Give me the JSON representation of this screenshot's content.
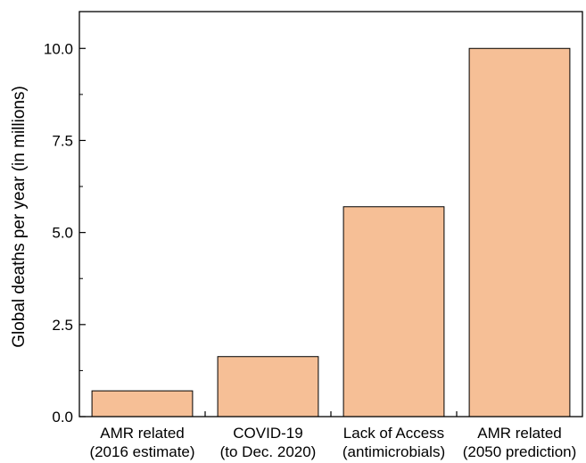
{
  "chart_data": {
    "type": "bar",
    "title": "",
    "xlabel": "",
    "ylabel": "Global deaths per year (in millions)",
    "categories": [
      [
        "AMR related",
        "(2016 estimate)"
      ],
      [
        "COVID-19",
        "(to Dec. 2020)"
      ],
      [
        "Lack of Access",
        "(antimicrobials)"
      ],
      [
        "AMR related",
        "(2050 prediction)"
      ]
    ],
    "values": [
      0.7,
      1.63,
      5.7,
      10.0
    ],
    "ylim": [
      0,
      11.0
    ],
    "yticks": [
      "0.0",
      "2.5",
      "5.0",
      "7.5",
      "10.0"
    ],
    "grid": false,
    "legend": "none",
    "bar_color": "#f6bf96",
    "bar_edge_color": "#000000"
  }
}
